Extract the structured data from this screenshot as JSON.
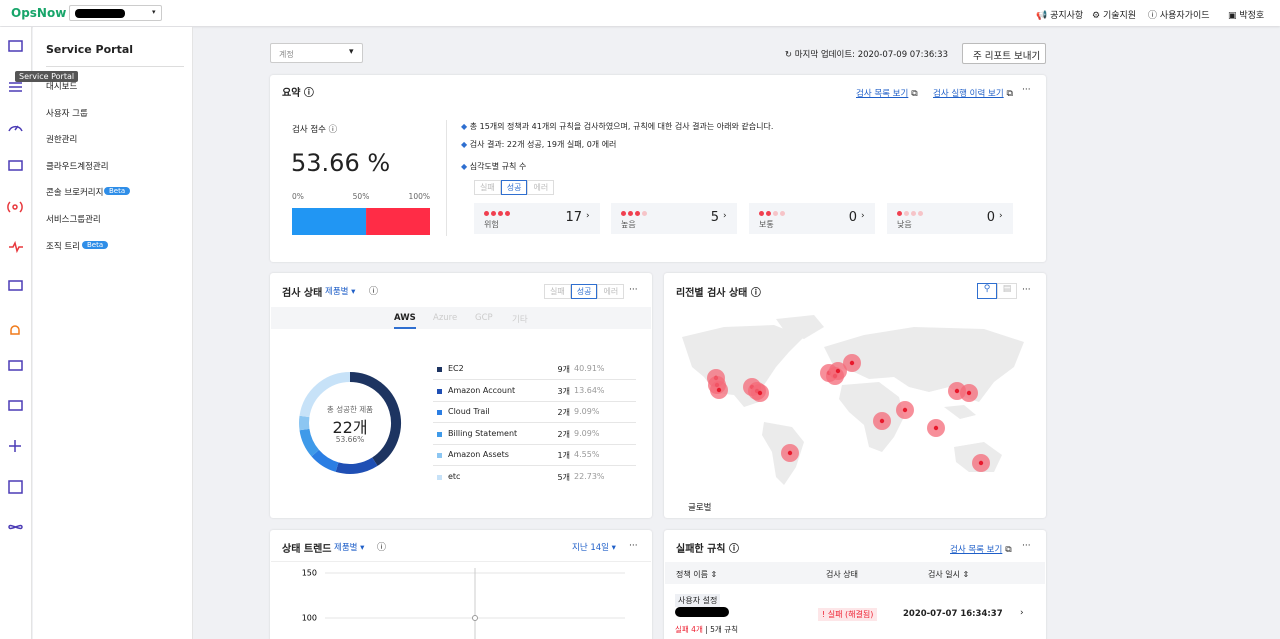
{
  "header": {
    "logo": "OpsNow",
    "links": [
      "공지사항",
      "기술지원",
      "사용자가이드"
    ],
    "user": "박정호"
  },
  "tooltip": "Service Portal",
  "sidebar": {
    "title": "Service Portal",
    "items": [
      {
        "label": "대시보드"
      },
      {
        "label": "사용자 그룹"
      },
      {
        "label": "권한관리"
      },
      {
        "label": "클라우드계정관리"
      },
      {
        "label": "콘솔 브로커리지",
        "badge": "Beta"
      },
      {
        "label": "서비스그룹관리"
      },
      {
        "label": "조직 트리",
        "badge": "Beta"
      }
    ]
  },
  "toolbar": {
    "account_filter": "계정",
    "last_update": "마지막 업데이트: 2020-07-09 07:36:33",
    "report_button": "리포트 보내기"
  },
  "summary": {
    "title": "요약",
    "links": [
      "검사 목록 보기",
      "검사 실행 이력 보기"
    ],
    "score_label": "검사 점수",
    "score": 53.66,
    "score_text": "53.66 %",
    "scale": [
      {
        "value": 0,
        "label": "0%"
      },
      {
        "value": 50,
        "label": "50%"
      },
      {
        "value": 100,
        "label": "100%"
      }
    ],
    "notes": [
      "총 15개의 정책과 41개의 규칙을 검사하였으며, 규칙에 대한 검사 결과는 아래와 같습니다.",
      "검사 결과: 22개 성공, 19개 실패, 0개 에러",
      "심각도별 규칙 수"
    ],
    "tabs": [
      "실패",
      "성공",
      "에러"
    ],
    "severity": [
      {
        "label": "위험",
        "count": 17
      },
      {
        "label": "높음",
        "count": 5
      },
      {
        "label": "보통",
        "count": 0
      },
      {
        "label": "낮음",
        "count": 0
      }
    ]
  },
  "status": {
    "title": "검사 상태",
    "grouping": "제품별",
    "tabs": [
      "실패",
      "성공",
      "에러"
    ],
    "clouds": [
      "AWS",
      "Azure",
      "GCP",
      "기타"
    ],
    "center": {
      "caption": "총 성공한 제품",
      "total": "22개",
      "share": "53.66%"
    },
    "products": [
      {
        "name": "EC2",
        "count": 9,
        "count_label": "9개",
        "share": 40.91,
        "share_label": "40.91%",
        "color": "#1d3461"
      },
      {
        "name": "Amazon Account",
        "count": 3,
        "count_label": "3개",
        "share": 13.64,
        "share_label": "13.64%",
        "color": "#1f4fb4"
      },
      {
        "name": "Cloud Trail",
        "count": 2,
        "count_label": "2개",
        "share": 9.09,
        "share_label": "9.09%",
        "color": "#2b7ee3"
      },
      {
        "name": "Billing Statement",
        "count": 2,
        "count_label": "2개",
        "share": 9.09,
        "share_label": "9.09%",
        "color": "#3f9ae9"
      },
      {
        "name": "Amazon Assets",
        "count": 1,
        "count_label": "1개",
        "share": 4.55,
        "share_label": "4.55%",
        "color": "#8cc6f2"
      },
      {
        "name": "etc",
        "count": 5,
        "count_label": "5개",
        "share": 22.73,
        "share_label": "22.73%",
        "color": "#c7e2f8"
      }
    ]
  },
  "region": {
    "title": "리전별 검사 상태",
    "legend": "글로벌"
  },
  "trend": {
    "title": "상태 트렌드",
    "grouping": "제품별",
    "period": "지난 14일",
    "yticks": [
      150,
      100
    ]
  },
  "failed_rules": {
    "title": "실패한 규칙",
    "link": "검사 목록 보기",
    "columns": [
      "정책 이름",
      "검사 상태",
      "검사 일시"
    ],
    "rows": [
      {
        "tag": "사용자 설정",
        "failed": "실패 4개",
        "rules": "5개 규칙",
        "status": "실패 (해결됨)",
        "time": "2020-07-07 16:34:37"
      }
    ]
  }
}
